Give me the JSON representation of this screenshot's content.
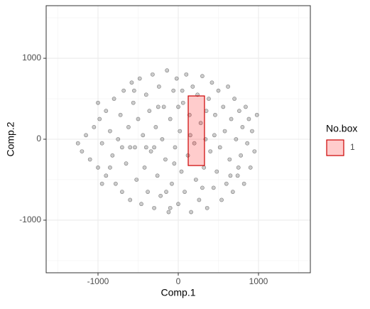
{
  "chart_data": {
    "type": "scatter",
    "x_label": "Comp.1",
    "y_label": "Comp.2",
    "xlim": [
      -1646,
      1646
    ],
    "ylim": [
      -1650,
      1650
    ],
    "xticks": [
      -1000,
      0,
      1000
    ],
    "yticks": [
      -1000,
      0,
      1000
    ],
    "x_minor_breaks": [
      -1500,
      -500,
      500,
      1500
    ],
    "y_minor_breaks": [
      -1500,
      -500,
      500,
      1500
    ],
    "grid": true,
    "series": [
      {
        "color": "#000000",
        "x": [
          -1200,
          -1150,
          -1100,
          -1050,
          -1000,
          -980,
          -950,
          -900,
          -900,
          -850,
          -820,
          -800,
          -780,
          -750,
          -720,
          -700,
          -680,
          -650,
          -620,
          -600,
          -580,
          -560,
          -540,
          -520,
          -500,
          -480,
          -460,
          -440,
          -420,
          -400,
          -380,
          -360,
          -340,
          -320,
          -300,
          -280,
          -260,
          -240,
          -220,
          -200,
          -180,
          -160,
          -140,
          -120,
          -100,
          -80,
          -60,
          -40,
          -20,
          0,
          20,
          40,
          60,
          80,
          100,
          120,
          140,
          160,
          180,
          200,
          220,
          240,
          260,
          280,
          300,
          320,
          340,
          360,
          380,
          400,
          420,
          440,
          460,
          480,
          500,
          520,
          540,
          560,
          580,
          600,
          620,
          640,
          660,
          680,
          700,
          720,
          740,
          760,
          780,
          800,
          820,
          840,
          860,
          880,
          900,
          920,
          950,
          980,
          -1250,
          -1000,
          -950,
          -300,
          -600,
          150,
          -50,
          300,
          -400,
          -250,
          50,
          450,
          -700,
          -150,
          650,
          -850,
          750,
          -550,
          350,
          -100,
          0
        ],
        "y": [
          -150,
          50,
          -250,
          150,
          -350,
          250,
          -50,
          350,
          -450,
          100,
          -200,
          500,
          -550,
          0,
          300,
          -650,
          600,
          -300,
          150,
          -750,
          700,
          450,
          -100,
          -500,
          250,
          750,
          -800,
          50,
          -350,
          550,
          -650,
          350,
          -150,
          800,
          -850,
          150,
          -450,
          650,
          -700,
          0,
          400,
          -250,
          850,
          -900,
          250,
          -550,
          600,
          -100,
          750,
          -800,
          100,
          -400,
          450,
          -650,
          800,
          -200,
          300,
          -900,
          650,
          -50,
          -500,
          550,
          -750,
          200,
          780,
          -350,
          0,
          -850,
          500,
          -150,
          700,
          -600,
          300,
          -400,
          600,
          -100,
          -750,
          400,
          100,
          -550,
          650,
          -250,
          250,
          -650,
          500,
          0,
          -450,
          350,
          -200,
          150,
          -550,
          400,
          -50,
          250,
          -350,
          100,
          -150,
          300,
          -50,
          450,
          -550,
          -100,
          -100,
          50,
          -300,
          -600,
          -100,
          400,
          600,
          50,
          -100,
          -650,
          -450,
          -350,
          -350,
          600,
          350,
          -850,
          400
        ]
      }
    ],
    "box": {
      "xmin": 124,
      "xmax": 327,
      "ymin": -325,
      "ymax": 535,
      "fill": "#ff0000",
      "stroke": "#cc0000"
    },
    "legend": {
      "title": "No.box",
      "labels": [
        "1"
      ],
      "position": "right"
    }
  }
}
